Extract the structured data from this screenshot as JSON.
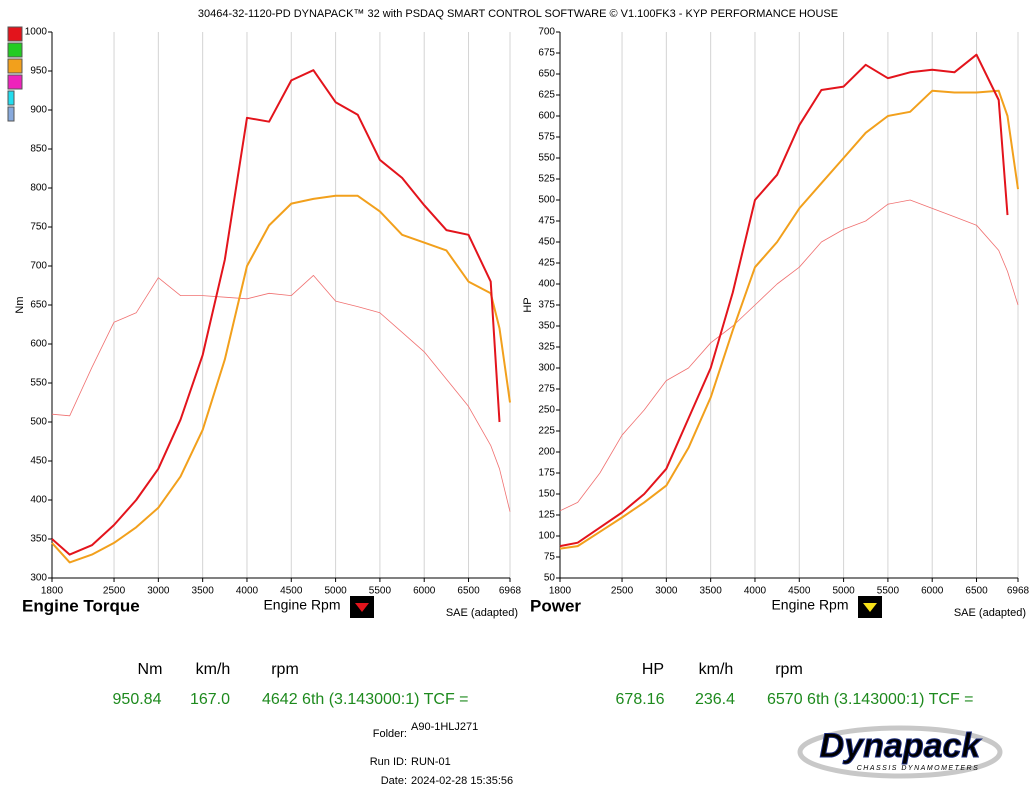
{
  "header": {
    "title": "30464-32-1120-PD DYNAPACK™ 32 with PSDAQ SMART CONTROL SOFTWARE © V1.100FK3 - KYP PERFORMANCE HOUSE"
  },
  "chart_data": [
    {
      "type": "line",
      "title": "Engine Torque",
      "x_label": "Engine Rpm",
      "y_label": "Nm",
      "note": "SAE (adapted)",
      "x": [
        1800,
        2000,
        2250,
        2500,
        2750,
        3000,
        3250,
        3500,
        3750,
        4000,
        4250,
        4500,
        4750,
        5000,
        5250,
        5500,
        5750,
        6000,
        6250,
        6500,
        6750,
        6850,
        6968
      ],
      "series": [
        {
          "color": "#e3141c",
          "line_width": 2,
          "values": [
            350,
            330,
            342,
            368,
            400,
            440,
            503,
            586,
            708,
            890,
            885,
            938,
            951,
            910,
            894,
            836,
            813,
            778,
            746,
            740,
            680,
            500,
            null
          ]
        },
        {
          "color": "#f2a01c",
          "line_width": 2,
          "values": [
            345,
            320,
            330,
            345,
            365,
            390,
            430,
            490,
            580,
            700,
            752,
            780,
            786,
            790,
            790,
            770,
            740,
            730,
            720,
            680,
            665,
            620,
            525
          ]
        },
        {
          "color": "#f07070",
          "line_width": 0.8,
          "values": [
            510,
            508,
            570,
            628,
            640,
            685,
            662,
            662,
            660,
            658,
            665,
            662,
            688,
            655,
            648,
            640,
            615,
            590,
            555,
            520,
            470,
            440,
            385
          ]
        }
      ],
      "xlim": [
        1800,
        6968
      ],
      "xticks": [
        1800,
        2500,
        3000,
        3500,
        4000,
        4500,
        5000,
        5500,
        6000,
        6500,
        6968
      ],
      "ylim": [
        300,
        1000
      ],
      "yticks": [
        300,
        350,
        400,
        450,
        500,
        550,
        600,
        650,
        700,
        750,
        800,
        850,
        900,
        950,
        1000
      ],
      "grid": true,
      "button_color": "#e3141c",
      "readout": {
        "headers": [
          "Nm",
          "km/h",
          "rpm"
        ],
        "values": [
          "950.84",
          "167.0",
          "4642 6th (3.143000:1) TCF ="
        ]
      }
    },
    {
      "type": "line",
      "title": "Power",
      "x_label": "Engine Rpm",
      "y_label": "HP",
      "note": "SAE (adapted)",
      "x": [
        1800,
        2000,
        2250,
        2500,
        2750,
        3000,
        3250,
        3500,
        3750,
        4000,
        4250,
        4500,
        4750,
        5000,
        5250,
        5500,
        5750,
        6000,
        6250,
        6500,
        6750,
        6850,
        6968
      ],
      "series": [
        {
          "color": "#e3141c",
          "line_width": 2,
          "values": [
            88,
            92,
            110,
            128,
            150,
            180,
            240,
            300,
            390,
            500,
            530,
            589,
            631,
            635,
            661,
            645,
            652,
            655,
            652,
            673,
            619,
            482,
            null
          ]
        },
        {
          "color": "#f2a01c",
          "line_width": 2,
          "values": [
            85,
            88,
            105,
            122,
            140,
            160,
            205,
            265,
            345,
            420,
            450,
            490,
            520,
            550,
            580,
            600,
            605,
            630,
            628,
            628,
            630,
            600,
            513
          ]
        },
        {
          "color": "#f07070",
          "line_width": 0.8,
          "values": [
            130,
            140,
            175,
            220,
            250,
            285,
            300,
            330,
            350,
            375,
            400,
            420,
            450,
            465,
            475,
            495,
            500,
            490,
            480,
            470,
            440,
            415,
            375
          ]
        }
      ],
      "xlim": [
        1800,
        6968
      ],
      "xticks": [
        1800,
        2500,
        3000,
        3500,
        4000,
        4500,
        5000,
        5500,
        6000,
        6500,
        6968
      ],
      "ylim": [
        50,
        700
      ],
      "yticks": [
        50,
        75,
        100,
        125,
        150,
        175,
        200,
        225,
        250,
        275,
        300,
        325,
        350,
        375,
        400,
        425,
        450,
        475,
        500,
        525,
        550,
        575,
        600,
        625,
        650,
        675,
        700
      ],
      "grid": true,
      "button_color": "#f7e11a",
      "readout": {
        "headers": [
          "HP",
          "km/h",
          "rpm"
        ],
        "values": [
          "678.16",
          "236.4",
          "6570 6th (3.143000:1) TCF ="
        ]
      }
    }
  ],
  "info": {
    "folder_label": "Folder:",
    "folder": "A90-1HLJ271",
    "run_label": "Run ID:",
    "run": "RUN-01",
    "date_label": "Date:",
    "date": "2024-02-28 15:35:56"
  },
  "logo": {
    "name": "Dynapack",
    "tagline": "CHASSIS DYNAMOMETERS"
  }
}
